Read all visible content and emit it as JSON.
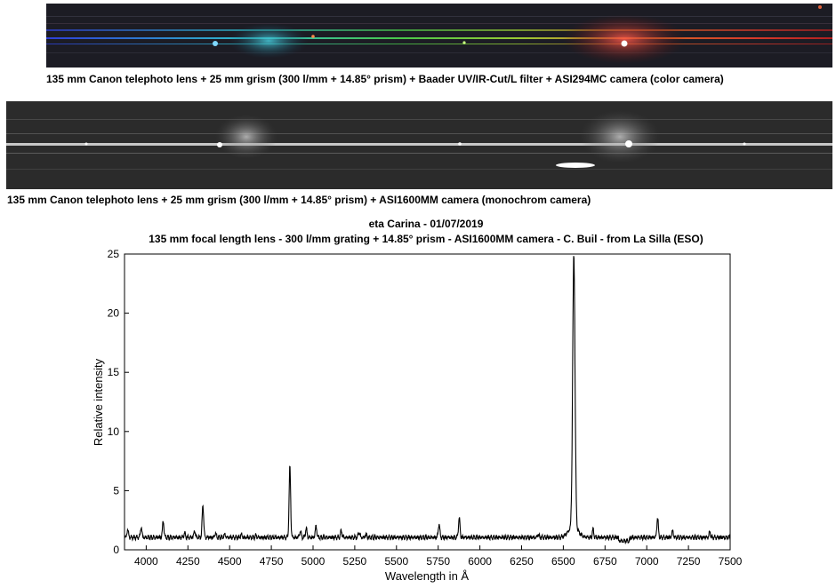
{
  "captions": {
    "color": "135 mm Canon telephoto lens + 25 mm grism (300 l/mm + 14.85° prism) + Baader UV/IR-Cut/L filter + ASI294MC camera (color camera)",
    "mono": "135 mm Canon telephoto lens + 25 mm grism (300 l/mm + 14.85° prism) + ASI1600MM camera (monochrom camera)"
  },
  "colors": {
    "strip_background": "#1c1c22",
    "mono_background": "#2a2a2a",
    "line": "#000000"
  },
  "chart_data": {
    "type": "line",
    "title": "eta Carina - 01/07/2019",
    "subtitle": "135 mm focal length lens - 300 l/mm grating + 14.85° prism - ASI1600MM camera - C. Buil - from La Silla (ESO)",
    "xlabel": "Wavelength in Å",
    "ylabel": "Relative intensity",
    "xlim": [
      3870,
      7500
    ],
    "ylim": [
      0,
      25
    ],
    "xticks": [
      4000,
      4250,
      4500,
      4750,
      5000,
      5250,
      5500,
      5750,
      6000,
      6250,
      6500,
      6750,
      7000,
      7250,
      7500
    ],
    "yticks": [
      0,
      5,
      10,
      15,
      20,
      25
    ],
    "grid": false,
    "baseline": 1.05,
    "series": [
      {
        "peaks": [
          {
            "x": 3889,
            "y": 1.7
          },
          {
            "x": 3970,
            "y": 1.9
          },
          {
            "x": 4102,
            "y": 2.4
          },
          {
            "x": 4230,
            "y": 1.4
          },
          {
            "x": 4290,
            "y": 1.6
          },
          {
            "x": 4340,
            "y": 3.8
          },
          {
            "x": 4415,
            "y": 1.4
          },
          {
            "x": 4471,
            "y": 1.3
          },
          {
            "x": 4570,
            "y": 1.3
          },
          {
            "x": 4658,
            "y": 1.2
          },
          {
            "x": 4861,
            "y": 7.0
          },
          {
            "x": 4924,
            "y": 1.6
          },
          {
            "x": 4959,
            "y": 1.8
          },
          {
            "x": 5018,
            "y": 2.0
          },
          {
            "x": 5169,
            "y": 1.6
          },
          {
            "x": 5276,
            "y": 1.5
          },
          {
            "x": 5317,
            "y": 1.3
          },
          {
            "x": 5755,
            "y": 2.2
          },
          {
            "x": 5876,
            "y": 2.7
          },
          {
            "x": 6350,
            "y": 1.3
          },
          {
            "x": 6563,
            "y": 24.0
          },
          {
            "x": 6678,
            "y": 1.7
          },
          {
            "x": 7065,
            "y": 2.7
          },
          {
            "x": 7155,
            "y": 1.6
          },
          {
            "x": 7378,
            "y": 1.5
          }
        ]
      }
    ]
  }
}
